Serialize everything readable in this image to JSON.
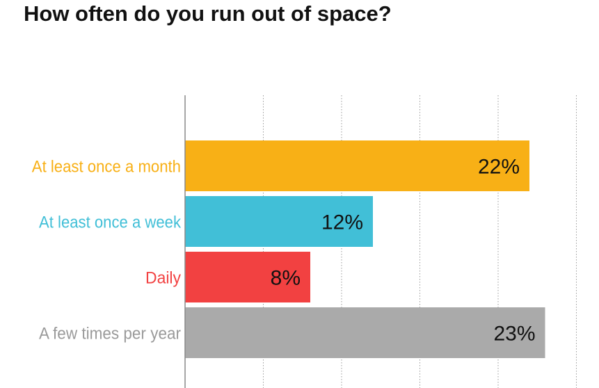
{
  "chart_data": {
    "type": "bar",
    "orientation": "horizontal",
    "title": "How often do you run out of space?",
    "xlabel": "",
    "ylabel": "",
    "xlim": [
      0,
      25
    ],
    "grid": true,
    "categories": [
      "At least once a month",
      "At least once a week",
      "Daily",
      "A few times per year"
    ],
    "values": [
      22,
      12,
      8,
      23
    ],
    "value_labels": [
      "22%",
      "12%",
      "8%",
      "23%"
    ],
    "colors": [
      "#f8b016",
      "#41bfd7",
      "#f24141",
      "#aaaaaa"
    ]
  }
}
